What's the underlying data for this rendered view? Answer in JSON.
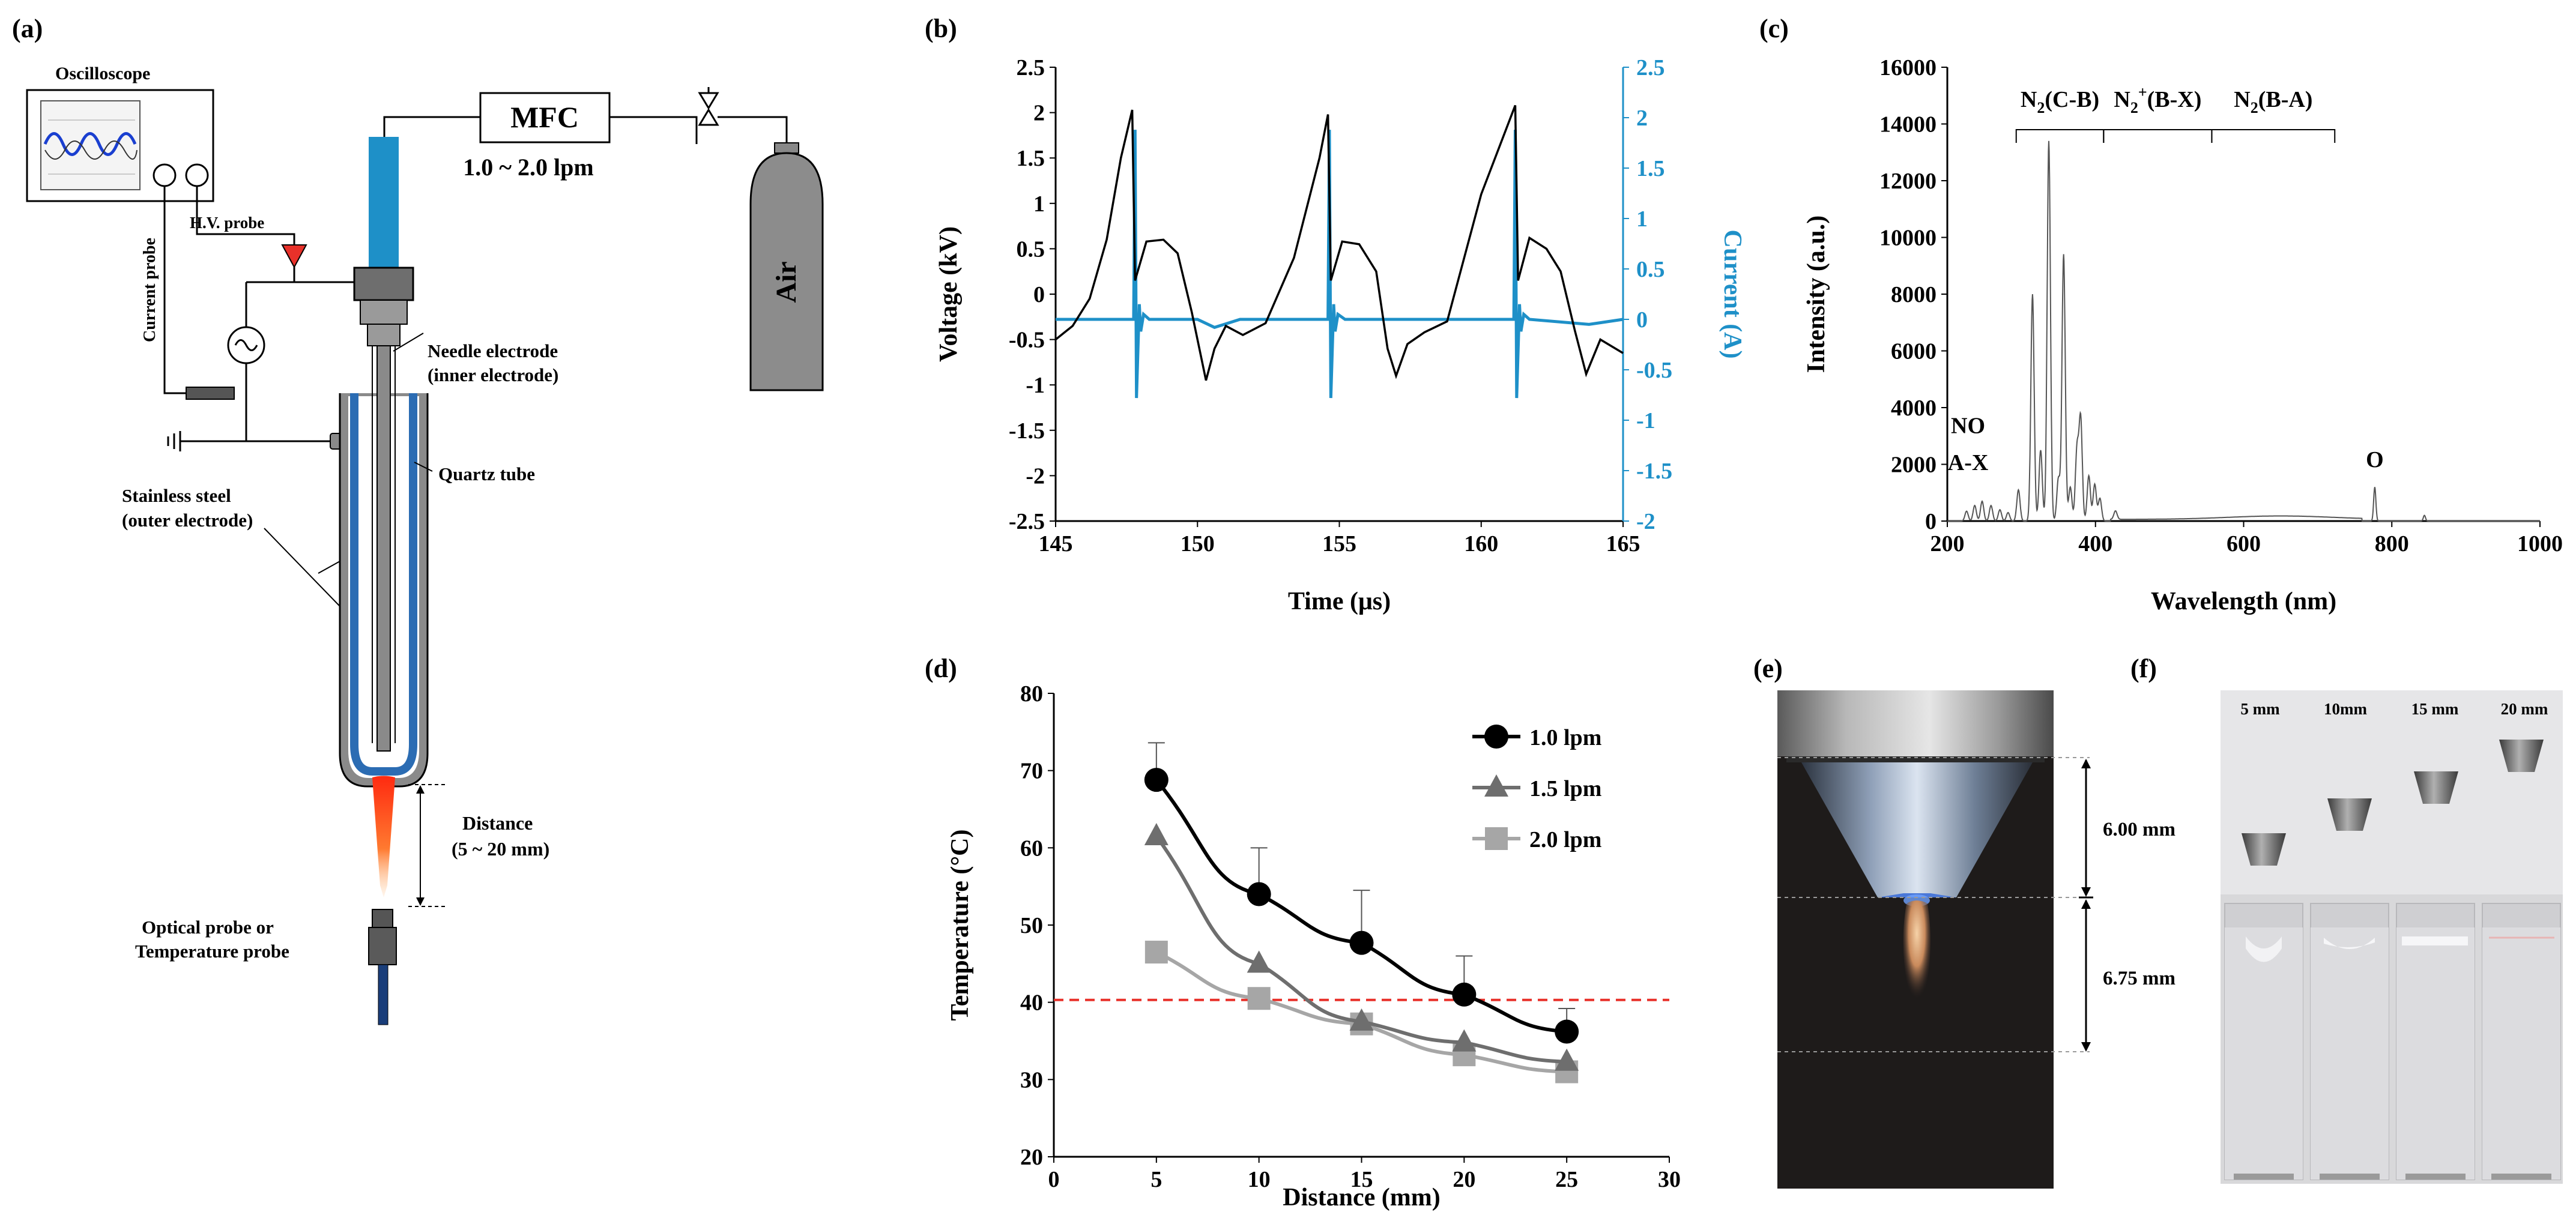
{
  "colors": {
    "current_blue": "#1e90c8",
    "ref_red": "#e8312a",
    "series_black": "#000000",
    "series_dark": "#6e6e6e",
    "series_light": "#a6a6a6",
    "steel": "#8a8a8a",
    "quartz": "#2b6cb3"
  },
  "panel_labels": {
    "a": "(a)",
    "b": "(b)",
    "c": "(c)",
    "d": "(d)",
    "e": "(e)",
    "f": "(f)"
  },
  "panel_a": {
    "oscilloscope": "Oscilloscope",
    "mfc": "MFC",
    "flow_range": "1.0 ~ 2.0 lpm",
    "air": "Air",
    "hv_probe": "H.V. probe",
    "current_probe": "Current probe",
    "needle_line1": "Needle electrode",
    "needle_line2": "(inner electrode)",
    "quartz_tube": "Quartz tube",
    "steel_line1": "Stainless steel",
    "steel_line2": "(outer electrode)",
    "distance_line1": "Distance",
    "distance_line2": "(5 ~ 20 mm)",
    "probe_line1": "Optical probe or",
    "probe_line2": "Temperature probe"
  },
  "panel_e": {
    "dim_top": "6.00 mm",
    "dim_bottom": "6.75 mm"
  },
  "panel_f": {
    "labels": [
      "5 mm",
      "10mm",
      "15 mm",
      "20 mm"
    ]
  },
  "chart_data": [
    {
      "id": "b",
      "type": "line",
      "title": "",
      "xlabel": "Time (μs)",
      "ylabel_left": "Voltage (kV)",
      "ylabel_right": "Current (A)",
      "xlim": [
        145,
        165
      ],
      "ylim_left": [
        -2.5,
        2.5
      ],
      "ylim_right": [
        -2,
        2.5
      ],
      "xticks": [
        "145",
        "150",
        "155",
        "160",
        "165"
      ],
      "yticks_left": [
        "2.5",
        "2",
        "1.5",
        "1",
        "0.5",
        "0",
        "-0.5",
        "-1",
        "-1.5",
        "-2",
        "-2.5"
      ],
      "yticks_right": [
        "2.5",
        "2",
        "1.5",
        "1",
        "0.5",
        "0",
        "-0.5",
        "-1",
        "-1.5",
        "-2"
      ],
      "series": [
        {
          "name": "Voltage",
          "axis": "left",
          "x": [
            145,
            145.6,
            146.2,
            146.8,
            147.3,
            147.7,
            147.8,
            148.2,
            148.8,
            149.3,
            149.8,
            150.3,
            150.6,
            151.0,
            151.6,
            152.4,
            153.4,
            154.3,
            154.6,
            154.7,
            155.1,
            155.7,
            156.3,
            156.7,
            157.0,
            157.4,
            158.0,
            158.8,
            160.0,
            161.2,
            161.3,
            161.7,
            162.3,
            162.8,
            163.3,
            163.7,
            164.2,
            165
          ],
          "values": [
            -0.5,
            -0.35,
            -0.05,
            0.6,
            1.5,
            2.03,
            0.15,
            0.58,
            0.6,
            0.45,
            -0.2,
            -0.95,
            -0.6,
            -0.35,
            -0.45,
            -0.32,
            0.4,
            1.5,
            1.98,
            0.15,
            0.58,
            0.55,
            0.25,
            -0.6,
            -0.9,
            -0.55,
            -0.42,
            -0.3,
            1.1,
            2.08,
            0.15,
            0.62,
            0.5,
            0.25,
            -0.4,
            -0.88,
            -0.5,
            -0.65
          ]
        },
        {
          "name": "Current",
          "axis": "right",
          "x": [
            145,
            147.75,
            147.8,
            147.85,
            147.95,
            148.0,
            148.1,
            148.3,
            150.0,
            150.6,
            151.5,
            154.6,
            154.65,
            154.7,
            154.8,
            154.85,
            154.95,
            155.2,
            157.0,
            160.0,
            161.15,
            161.2,
            161.25,
            161.35,
            161.4,
            161.5,
            161.7,
            163.8,
            165
          ],
          "values": [
            0,
            0,
            1.88,
            -0.78,
            0.15,
            -0.12,
            0.05,
            0,
            0,
            -0.08,
            0,
            0,
            1.88,
            -0.78,
            0.15,
            -0.12,
            0.05,
            0,
            0,
            0,
            0,
            1.88,
            -0.78,
            0.15,
            -0.12,
            0.05,
            0,
            -0.05,
            0
          ]
        }
      ]
    },
    {
      "id": "c",
      "type": "line",
      "title": "",
      "xlabel": "Wavelength  (nm)",
      "ylabel": "Intensity (a.u.)",
      "xlim": [
        200,
        1000
      ],
      "ylim": [
        0,
        16000
      ],
      "xticks": [
        "200",
        "400",
        "600",
        "800",
        "1000"
      ],
      "yticks": [
        "16000",
        "14000",
        "12000",
        "10000",
        "8000",
        "6000",
        "4000",
        "2000",
        "0"
      ],
      "peaks": [
        {
          "wavelength": 226,
          "intensity": 350
        },
        {
          "wavelength": 237,
          "intensity": 550
        },
        {
          "wavelength": 247,
          "intensity": 700
        },
        {
          "wavelength": 259,
          "intensity": 550
        },
        {
          "wavelength": 271,
          "intensity": 400
        },
        {
          "wavelength": 282,
          "intensity": 300
        },
        {
          "wavelength": 296,
          "intensity": 1100
        },
        {
          "wavelength": 315,
          "intensity": 8000
        },
        {
          "wavelength": 326,
          "intensity": 2500
        },
        {
          "wavelength": 337,
          "intensity": 13400
        },
        {
          "wavelength": 350,
          "intensity": 1500
        },
        {
          "wavelength": 357,
          "intensity": 9400
        },
        {
          "wavelength": 366,
          "intensity": 1200
        },
        {
          "wavelength": 375,
          "intensity": 2500
        },
        {
          "wavelength": 380,
          "intensity": 3600
        },
        {
          "wavelength": 391,
          "intensity": 1600
        },
        {
          "wavelength": 399,
          "intensity": 1300
        },
        {
          "wavelength": 406,
          "intensity": 800
        },
        {
          "wavelength": 427,
          "intensity": 300
        },
        {
          "wavelength": 777,
          "intensity": 1200
        },
        {
          "wavelength": 844,
          "intensity": 200
        }
      ],
      "bands": [
        {
          "label": "N2(C-B)",
          "from": 293,
          "to": 411,
          "level": 13800
        },
        {
          "label": "N2+(B-X)",
          "from": 411,
          "to": 557,
          "level": 13800
        },
        {
          "label": "N2(B-A)",
          "from": 557,
          "to": 723,
          "level": 13800
        }
      ],
      "annotations": [
        {
          "text": "NO",
          "x": 228,
          "y": 3100
        },
        {
          "text": "A-X",
          "x": 228,
          "y": 1800
        },
        {
          "text": "O",
          "x": 777,
          "y": 1900
        }
      ],
      "band_text": {
        "c_b_main": "N",
        "c_b_sub": "2",
        "c_b_rest": "(C-B)",
        "bx_main": "N",
        "bx_sub": "2",
        "bx_sup": "+",
        "bx_rest": "(B-X)",
        "ba_main": "N",
        "ba_sub": "2",
        "ba_rest": "(B-A)"
      }
    },
    {
      "id": "d",
      "type": "line",
      "title": "",
      "xlabel": "Distance (mm)",
      "ylabel": "Temperature (°C)",
      "xlim": [
        0,
        30
      ],
      "ylim": [
        20,
        80
      ],
      "xticks": [
        "0",
        "5",
        "10",
        "15",
        "20",
        "25",
        "30"
      ],
      "yticks": [
        "80",
        "70",
        "60",
        "50",
        "40",
        "30",
        "20"
      ],
      "reference_line": {
        "y": 40.3,
        "style": "dashed red"
      },
      "x": [
        5,
        10,
        15,
        20,
        25
      ],
      "series": [
        {
          "name": "1.0 lpm",
          "marker": "circle",
          "values": [
            68.8,
            54.0,
            47.7,
            41.0,
            36.2
          ],
          "errors": [
            4.8,
            6.0,
            6.8,
            5.0,
            3.0
          ]
        },
        {
          "name": "1.5 lpm",
          "marker": "triangle",
          "values": [
            61.5,
            45.0,
            37.5,
            34.8,
            32.3
          ],
          "errors": [
            0,
            0,
            0,
            0,
            0
          ]
        },
        {
          "name": "2.0 lpm",
          "marker": "square",
          "values": [
            46.5,
            40.5,
            37.2,
            33.2,
            31.0
          ],
          "errors": [
            0,
            0,
            0,
            0,
            0
          ]
        }
      ]
    }
  ]
}
